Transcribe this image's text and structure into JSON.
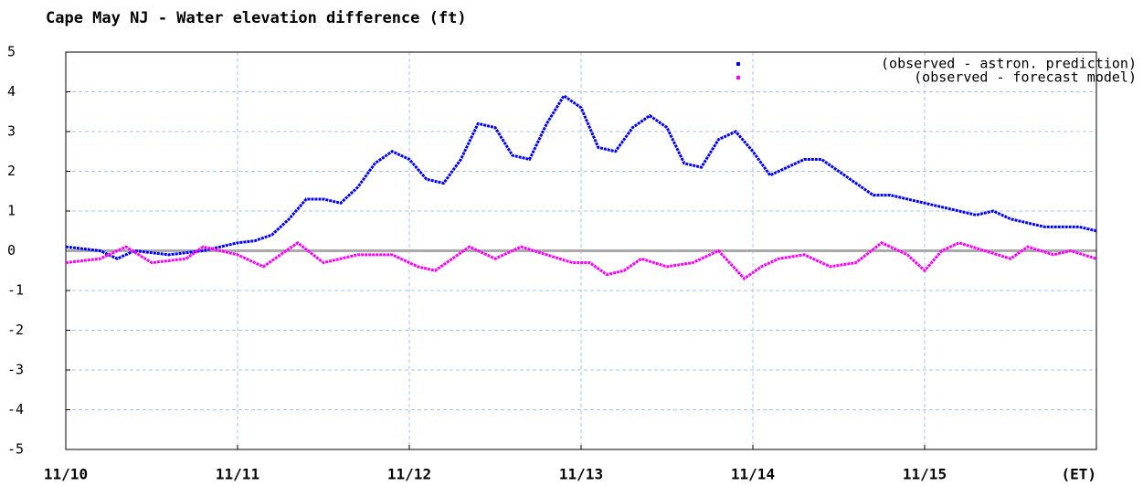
{
  "chart_data": {
    "type": "line",
    "title": "Cape May NJ - Water elevation difference (ft)",
    "xlim": [
      0,
      6
    ],
    "xticks": [
      {
        "value": 0,
        "label": "11/10"
      },
      {
        "value": 1,
        "label": "11/11"
      },
      {
        "value": 2,
        "label": "11/12"
      },
      {
        "value": 3,
        "label": "11/13"
      },
      {
        "value": 4,
        "label": "11/14"
      },
      {
        "value": 5,
        "label": "11/15"
      },
      {
        "value": 6,
        "label": "(ET)"
      }
    ],
    "ylim": [
      -5,
      5
    ],
    "yticks": [
      -5,
      -4,
      -3,
      -2,
      -1,
      0,
      1,
      2,
      3,
      4,
      5
    ],
    "grid": true,
    "legend": "upper right",
    "series": [
      {
        "name": "(observed - astron. prediction)",
        "color": "#0000ff",
        "x": [
          0,
          0.2,
          0.3,
          0.4,
          0.6,
          0.8,
          0.9,
          1.0,
          1.1,
          1.2,
          1.3,
          1.4,
          1.5,
          1.6,
          1.7,
          1.8,
          1.9,
          2.0,
          2.1,
          2.2,
          2.3,
          2.4,
          2.5,
          2.6,
          2.7,
          2.8,
          2.9,
          3.0,
          3.1,
          3.2,
          3.3,
          3.4,
          3.5,
          3.6,
          3.7,
          3.8,
          3.9,
          4.0,
          4.1,
          4.2,
          4.3,
          4.4,
          4.5,
          4.6,
          4.7,
          4.8,
          4.9,
          5.0,
          5.1,
          5.2,
          5.3,
          5.4,
          5.5,
          5.6,
          5.7,
          5.8,
          5.9,
          6.0
        ],
        "values": [
          0.1,
          0.0,
          -0.2,
          0.0,
          -0.1,
          0.0,
          0.1,
          0.2,
          0.25,
          0.4,
          0.8,
          1.3,
          1.3,
          1.2,
          1.6,
          2.2,
          2.5,
          2.3,
          1.8,
          1.7,
          2.3,
          3.2,
          3.1,
          2.4,
          2.3,
          3.2,
          3.9,
          3.6,
          2.6,
          2.5,
          3.1,
          3.4,
          3.1,
          2.2,
          2.1,
          2.8,
          3.0,
          2.5,
          1.9,
          2.1,
          2.3,
          2.3,
          2.0,
          1.7,
          1.4,
          1.4,
          1.3,
          1.2,
          1.1,
          1.0,
          0.9,
          1.0,
          0.8,
          0.7,
          0.6,
          0.6,
          0.6,
          0.5
        ]
      },
      {
        "name": "(observed - forecast model)",
        "color": "#ff00ff",
        "x": [
          0,
          0.2,
          0.35,
          0.5,
          0.7,
          0.8,
          1.0,
          1.15,
          1.35,
          1.5,
          1.7,
          1.9,
          2.05,
          2.15,
          2.35,
          2.5,
          2.65,
          2.8,
          2.95,
          3.05,
          3.15,
          3.25,
          3.35,
          3.5,
          3.65,
          3.8,
          3.95,
          4.05,
          4.15,
          4.3,
          4.45,
          4.6,
          4.75,
          4.9,
          5.0,
          5.1,
          5.2,
          5.35,
          5.5,
          5.6,
          5.75,
          5.85,
          6.0
        ],
        "values": [
          -0.3,
          -0.2,
          0.1,
          -0.3,
          -0.2,
          0.1,
          -0.1,
          -0.4,
          0.2,
          -0.3,
          -0.1,
          -0.1,
          -0.4,
          -0.5,
          0.1,
          -0.2,
          0.1,
          -0.1,
          -0.3,
          -0.3,
          -0.6,
          -0.5,
          -0.2,
          -0.4,
          -0.3,
          0.0,
          -0.7,
          -0.4,
          -0.2,
          -0.1,
          -0.4,
          -0.3,
          0.2,
          -0.1,
          -0.5,
          0.0,
          0.2,
          0.0,
          -0.2,
          0.1,
          -0.1,
          0.0,
          -0.2
        ]
      }
    ]
  }
}
